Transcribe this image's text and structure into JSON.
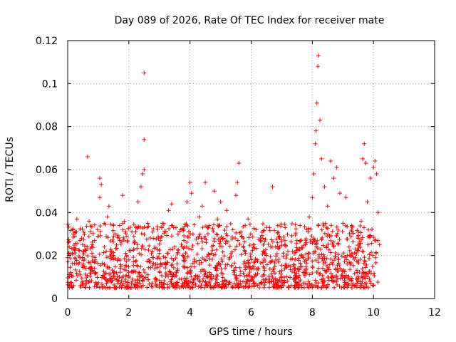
{
  "chart_data": {
    "type": "scatter",
    "title": "Day 089 of 2026, Rate Of TEC Index for receiver mate",
    "xlabel": "GPS time / hours",
    "ylabel": "ROTI / TECUs",
    "xlim": [
      0,
      12
    ],
    "ylim": [
      0,
      0.12
    ],
    "xticks": [
      0,
      2,
      4,
      6,
      8,
      10,
      12
    ],
    "xtick_labels": [
      "0",
      "2",
      "4",
      "6",
      "8",
      "10",
      "12"
    ],
    "yticks": [
      0,
      0.02,
      0.04,
      0.06,
      0.08,
      0.1,
      0.12
    ],
    "ytick_labels": [
      "0",
      "0.02",
      "0.04",
      "0.06",
      "0.08",
      "0.1",
      "0.12"
    ],
    "grid": true,
    "marker": "+",
    "marker_color": "#ff0000",
    "series": [
      {
        "name": "ROTI",
        "points": [
          [
            0.0,
            0.019
          ],
          [
            0.05,
            0.024
          ],
          [
            0.1,
            0.012
          ],
          [
            0.15,
            0.021
          ],
          [
            0.2,
            0.006
          ],
          [
            0.25,
            0.031
          ],
          [
            0.3,
            0.037
          ],
          [
            0.35,
            0.016
          ],
          [
            0.4,
            0.027
          ],
          [
            0.5,
            0.022
          ],
          [
            0.6,
            0.014
          ],
          [
            0.65,
            0.066
          ],
          [
            0.7,
            0.036
          ],
          [
            0.8,
            0.025
          ],
          [
            0.9,
            0.018
          ],
          [
            1.0,
            0.029
          ],
          [
            1.05,
            0.047
          ],
          [
            1.05,
            0.056
          ],
          [
            1.1,
            0.053
          ],
          [
            1.2,
            0.016
          ],
          [
            1.3,
            0.038
          ],
          [
            1.35,
            0.043
          ],
          [
            1.4,
            0.022
          ],
          [
            1.5,
            0.034
          ],
          [
            1.6,
            0.012
          ],
          [
            1.7,
            0.027
          ],
          [
            1.8,
            0.048
          ],
          [
            1.85,
            0.036
          ],
          [
            1.9,
            0.021
          ],
          [
            2.0,
            0.018
          ],
          [
            2.1,
            0.031
          ],
          [
            2.2,
            0.026
          ],
          [
            2.3,
            0.045
          ],
          [
            2.4,
            0.052
          ],
          [
            2.45,
            0.058
          ],
          [
            2.5,
            0.06
          ],
          [
            2.5,
            0.074
          ],
          [
            2.5,
            0.105
          ],
          [
            2.6,
            0.033
          ],
          [
            2.7,
            0.017
          ],
          [
            2.8,
            0.028
          ],
          [
            3.0,
            0.021
          ],
          [
            3.1,
            0.035
          ],
          [
            3.2,
            0.019
          ],
          [
            3.3,
            0.041
          ],
          [
            3.4,
            0.044
          ],
          [
            3.5,
            0.024
          ],
          [
            3.6,
            0.013
          ],
          [
            3.7,
            0.032
          ],
          [
            3.8,
            0.027
          ],
          [
            3.9,
            0.045
          ],
          [
            4.0,
            0.054
          ],
          [
            4.05,
            0.049
          ],
          [
            4.1,
            0.03
          ],
          [
            4.2,
            0.017
          ],
          [
            4.3,
            0.038
          ],
          [
            4.4,
            0.043
          ],
          [
            4.5,
            0.054
          ],
          [
            4.6,
            0.033
          ],
          [
            4.7,
            0.021
          ],
          [
            4.8,
            0.05
          ],
          [
            4.9,
            0.037
          ],
          [
            5.0,
            0.045
          ],
          [
            5.1,
            0.028
          ],
          [
            5.2,
            0.041
          ],
          [
            5.3,
            0.019
          ],
          [
            5.4,
            0.032
          ],
          [
            5.5,
            0.048
          ],
          [
            5.55,
            0.054
          ],
          [
            5.6,
            0.063
          ],
          [
            5.7,
            0.029
          ],
          [
            5.8,
            0.022
          ],
          [
            5.9,
            0.037
          ],
          [
            6.0,
            0.014
          ],
          [
            6.1,
            0.025
          ],
          [
            6.2,
            0.018
          ],
          [
            6.3,
            0.027
          ],
          [
            6.4,
            0.011
          ],
          [
            6.5,
            0.02
          ],
          [
            6.6,
            0.033
          ],
          [
            6.7,
            0.052
          ],
          [
            6.8,
            0.024
          ],
          [
            6.9,
            0.017
          ],
          [
            7.0,
            0.013
          ],
          [
            7.2,
            0.022
          ],
          [
            7.4,
            0.015
          ],
          [
            7.5,
            0.027
          ],
          [
            7.6,
            0.034
          ],
          [
            7.7,
            0.019
          ],
          [
            7.8,
            0.026
          ],
          [
            7.9,
            0.038
          ],
          [
            8.0,
            0.047
          ],
          [
            8.05,
            0.058
          ],
          [
            8.1,
            0.072
          ],
          [
            8.12,
            0.078
          ],
          [
            8.15,
            0.091
          ],
          [
            8.18,
            0.108
          ],
          [
            8.2,
            0.113
          ],
          [
            8.25,
            0.083
          ],
          [
            8.3,
            0.065
          ],
          [
            8.4,
            0.052
          ],
          [
            8.5,
            0.043
          ],
          [
            8.6,
            0.064
          ],
          [
            8.7,
            0.056
          ],
          [
            8.8,
            0.061
          ],
          [
            8.9,
            0.049
          ],
          [
            9.0,
            0.035
          ],
          [
            9.1,
            0.047
          ],
          [
            9.2,
            0.024
          ],
          [
            9.3,
            0.031
          ],
          [
            9.4,
            0.019
          ],
          [
            9.5,
            0.028
          ],
          [
            9.6,
            0.036
          ],
          [
            9.65,
            0.065
          ],
          [
            9.7,
            0.072
          ],
          [
            9.75,
            0.063
          ],
          [
            9.8,
            0.045
          ],
          [
            9.9,
            0.056
          ],
          [
            10.0,
            0.061
          ],
          [
            10.05,
            0.064
          ],
          [
            10.1,
            0.058
          ],
          [
            10.15,
            0.04
          ],
          [
            10.2,
            0.025
          ]
        ]
      }
    ]
  }
}
